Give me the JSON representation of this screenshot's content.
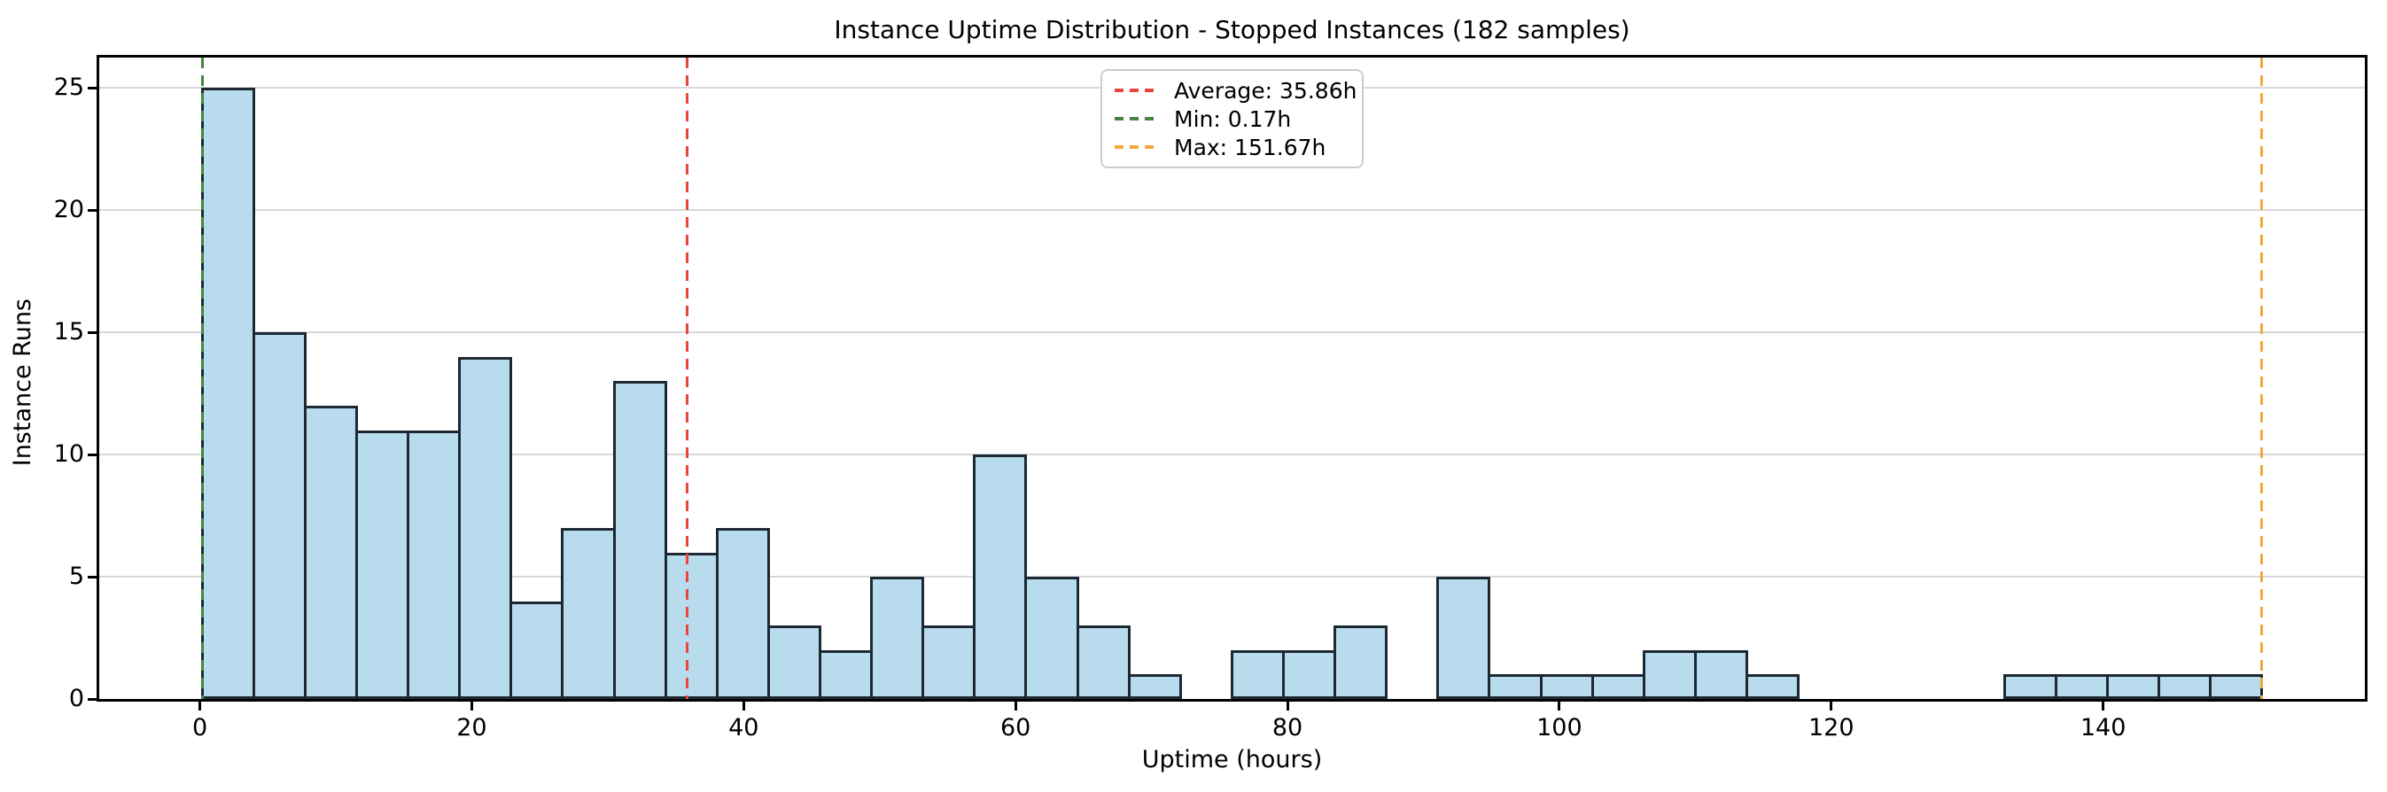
{
  "chart_data": {
    "type": "bar",
    "subtype": "histogram",
    "title": "Instance Uptime Distribution - Stopped Instances (182 samples)",
    "xlabel": "Uptime (hours)",
    "ylabel": "Instance Runs",
    "sample_count": 182,
    "bin_start": 0.17,
    "bin_width": 3.7875,
    "counts": [
      25,
      15,
      12,
      11,
      11,
      14,
      4,
      7,
      13,
      6,
      7,
      3,
      2,
      5,
      3,
      10,
      5,
      3,
      1,
      0,
      2,
      2,
      3,
      0,
      5,
      1,
      1,
      1,
      2,
      2,
      1,
      0,
      0,
      0,
      0,
      1,
      1,
      1,
      1,
      1
    ],
    "x_ticks": [
      0,
      20,
      40,
      60,
      80,
      100,
      120,
      140
    ],
    "y_ticks": [
      0,
      5,
      10,
      15,
      20,
      25
    ],
    "xlim": [
      -7.4,
      159.25
    ],
    "ylim": [
      0,
      26.25
    ],
    "grid": "horizontal",
    "legend_position": "top-center",
    "reference_lines": [
      {
        "name": "average",
        "label": "Average: 35.86h",
        "value": 35.86,
        "color": "#e8463a",
        "style": "dashed"
      },
      {
        "name": "min",
        "label": "Min: 0.17h",
        "value": 0.17,
        "color": "#448540",
        "style": "dashed"
      },
      {
        "name": "max",
        "label": "Max: 151.67h",
        "value": 151.67,
        "color": "#f3a73b",
        "style": "dashed"
      }
    ],
    "colors": {
      "bar_fill": "#b9dbee",
      "bar_edge": "#1c2933",
      "grid": "#d8d8d8",
      "axis": "#000000",
      "background": "#ffffff"
    }
  }
}
